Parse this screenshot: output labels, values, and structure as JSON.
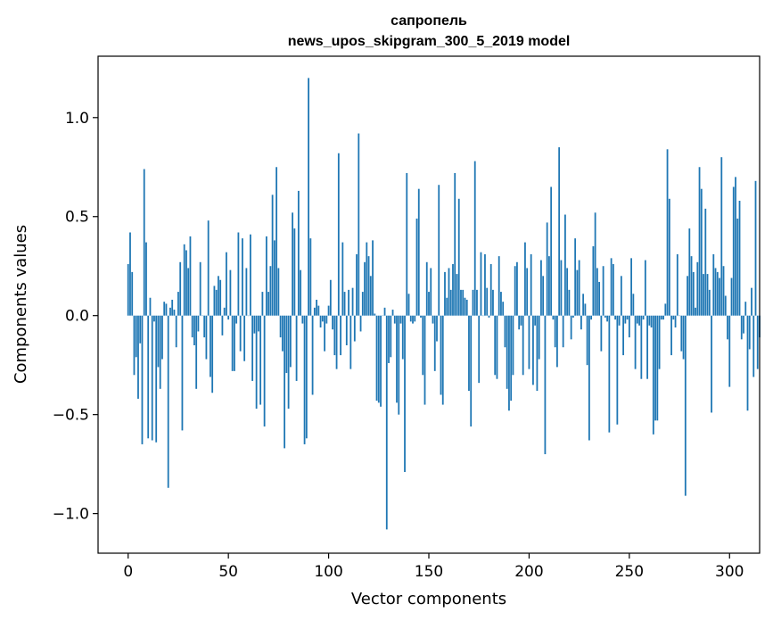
{
  "chart_data": {
    "type": "bar",
    "title": "сапропель",
    "subtitle": "news_upos_skipgram_300_5_2019 model",
    "xlabel": "Vector components",
    "ylabel": "Components values",
    "xlim": [
      -15,
      315
    ],
    "ylim": [
      -1.2,
      1.31
    ],
    "xticks": [
      0,
      50,
      100,
      150,
      200,
      250,
      300
    ],
    "xtick_labels": [
      "0",
      "50",
      "100",
      "150",
      "200",
      "250",
      "300"
    ],
    "yticks": [
      -1.0,
      -0.5,
      0.0,
      0.5,
      1.0
    ],
    "ytick_labels": [
      "−1.0",
      "−0.5",
      "0.0",
      "0.5",
      "1.0"
    ],
    "grid": false,
    "bar_color": "#1f77b4",
    "values": [
      0.26,
      0.42,
      0.22,
      -0.3,
      -0.21,
      -0.42,
      -0.14,
      -0.65,
      0.74,
      0.37,
      -0.62,
      0.09,
      -0.63,
      -0.03,
      -0.64,
      -0.26,
      -0.37,
      -0.22,
      0.07,
      0.06,
      -0.87,
      0.04,
      0.08,
      0.03,
      -0.16,
      0.12,
      0.27,
      -0.58,
      0.36,
      0.33,
      0.24,
      0.4,
      -0.11,
      -0.15,
      -0.37,
      -0.08,
      0.27,
      0.0,
      -0.11,
      -0.22,
      0.48,
      -0.31,
      -0.39,
      0.15,
      0.13,
      0.2,
      0.18,
      -0.1,
      0.04,
      0.32,
      -0.02,
      0.23,
      -0.28,
      -0.28,
      -0.04,
      0.42,
      -0.18,
      0.39,
      -0.23,
      0.24,
      0.0,
      0.41,
      -0.33,
      -0.09,
      -0.47,
      -0.08,
      -0.45,
      0.12,
      -0.56,
      0.4,
      0.12,
      0.25,
      0.61,
      0.38,
      0.75,
      0.24,
      -0.11,
      -0.18,
      -0.67,
      -0.29,
      -0.47,
      -0.26,
      0.52,
      0.44,
      -0.33,
      0.63,
      0.23,
      -0.04,
      -0.65,
      -0.62,
      1.2,
      0.39,
      -0.4,
      0.04,
      0.08,
      0.05,
      -0.06,
      -0.03,
      -0.18,
      -0.04,
      0.05,
      0.18,
      -0.07,
      -0.2,
      -0.27,
      0.82,
      -0.2,
      0.37,
      0.12,
      -0.15,
      0.13,
      -0.27,
      0.14,
      -0.13,
      0.31,
      0.92,
      -0.08,
      0.12,
      0.27,
      0.37,
      0.3,
      0.2,
      0.38,
      0.01,
      -0.43,
      -0.44,
      -0.46,
      0.0,
      0.04,
      -1.08,
      -0.24,
      -0.21,
      0.03,
      -0.04,
      -0.44,
      -0.5,
      -0.04,
      -0.22,
      -0.79,
      0.72,
      0.11,
      -0.03,
      -0.04,
      -0.03,
      0.49,
      0.64,
      -0.01,
      -0.3,
      -0.45,
      0.27,
      0.12,
      0.24,
      -0.04,
      -0.28,
      -0.13,
      0.66,
      -0.4,
      -0.45,
      0.22,
      0.09,
      0.24,
      0.13,
      0.26,
      0.72,
      0.21,
      0.59,
      0.13,
      0.13,
      0.09,
      0.08,
      -0.38,
      -0.56,
      0.13,
      0.78,
      0.13,
      -0.34,
      0.32,
      0.0,
      0.31,
      0.14,
      -0.01,
      0.26,
      0.13,
      -0.3,
      -0.32,
      0.3,
      0.12,
      0.07,
      -0.16,
      -0.37,
      -0.48,
      -0.43,
      -0.3,
      0.25,
      0.27,
      -0.07,
      -0.05,
      -0.3,
      0.37,
      0.24,
      -0.27,
      0.31,
      -0.35,
      -0.05,
      -0.38,
      -0.22,
      0.28,
      0.2,
      -0.7,
      0.47,
      0.3,
      0.65,
      -0.02,
      -0.16,
      -0.26,
      0.85,
      0.28,
      -0.16,
      0.51,
      0.24,
      0.13,
      -0.12,
      -0.01,
      0.39,
      0.23,
      0.28,
      -0.07,
      0.11,
      0.06,
      -0.25,
      -0.63,
      -0.02,
      0.35,
      0.52,
      0.24,
      0.17,
      -0.18,
      0.25,
      -0.01,
      -0.03,
      -0.59,
      0.29,
      0.26,
      -0.02,
      -0.55,
      -0.05,
      0.2,
      -0.2,
      -0.04,
      -0.02,
      -0.11,
      0.29,
      0.11,
      -0.27,
      -0.04,
      -0.05,
      -0.32,
      -0.02,
      0.28,
      -0.32,
      -0.05,
      -0.06,
      -0.6,
      -0.53,
      -0.53,
      -0.27,
      -0.02,
      -0.02,
      0.06,
      0.84,
      0.59,
      -0.2,
      -0.02,
      -0.06,
      0.31,
      0.0,
      -0.18,
      -0.22,
      -0.91,
      0.2,
      0.44,
      0.3,
      0.22,
      0.04,
      0.27,
      0.75,
      0.64,
      0.21,
      0.54,
      0.21,
      0.13,
      -0.49,
      0.31,
      0.24,
      0.22,
      0.19,
      0.8,
      0.25,
      0.1,
      -0.12,
      -0.36,
      0.19,
      0.65,
      0.7,
      0.49,
      0.58,
      -0.12,
      -0.09,
      0.07,
      -0.48,
      -0.17,
      0.14,
      -0.31,
      0.68,
      -0.27,
      -0.11
    ]
  }
}
